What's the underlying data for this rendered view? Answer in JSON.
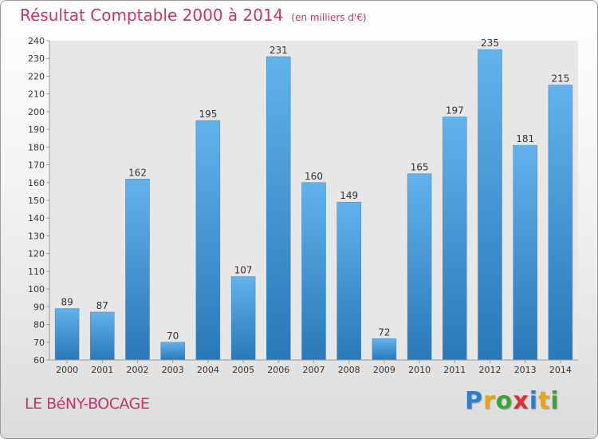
{
  "header": {
    "title": "Résultat Comptable 2000 à 2014",
    "subtitle": "(en milliers d'€)"
  },
  "footer": {
    "commune": "LE BéNY-BOCAGE",
    "logo_letters": [
      "P",
      "r",
      "o",
      "x",
      "i",
      "t",
      "i"
    ],
    "logo_colors": [
      "#2f7fd0",
      "#e9a11b",
      "#3aa535",
      "#d8312f",
      "#2f7fd0",
      "#e9a11b",
      "#3aa535"
    ]
  },
  "chart_data": {
    "type": "bar",
    "title": "Résultat Comptable 2000 à 2014",
    "subtitle": "(en milliers d'€)",
    "xlabel": "",
    "ylabel": "",
    "categories": [
      "2000",
      "2001",
      "2002",
      "2003",
      "2004",
      "2005",
      "2006",
      "2007",
      "2008",
      "2009",
      "2010",
      "2011",
      "2012",
      "2013",
      "2014"
    ],
    "values": [
      89,
      87,
      162,
      70,
      195,
      107,
      231,
      160,
      149,
      72,
      165,
      197,
      235,
      181,
      215
    ],
    "ylim": [
      60,
      240
    ],
    "ytick_step": 10,
    "grid": false,
    "colors": {
      "bar_light": "#62b2ec",
      "bar_dark": "#2a78b8",
      "title": "#c8336e"
    }
  }
}
